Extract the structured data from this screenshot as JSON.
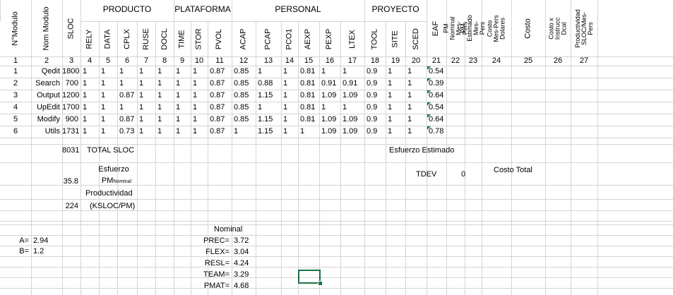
{
  "group_headers": {
    "producto": "PRODUCTO",
    "plataforma": "PLATAFORMA",
    "personal": "PERSONAL",
    "proyecto": "PROYECTO"
  },
  "columns": [
    {
      "key": "nmodulo",
      "label": "N°Modulo",
      "num": "1"
    },
    {
      "key": "nom",
      "label": "Nom Modulo",
      "num": "2"
    },
    {
      "key": "sloc",
      "label": "SLOC",
      "num": "3"
    },
    {
      "key": "rely",
      "label": "RELY",
      "num": "4"
    },
    {
      "key": "data",
      "label": "DATA",
      "num": "5"
    },
    {
      "key": "cplx",
      "label": "CPLX",
      "num": "6"
    },
    {
      "key": "ruse",
      "label": "RUSE",
      "num": "7"
    },
    {
      "key": "docl",
      "label": "DOCL",
      "num": "8"
    },
    {
      "key": "time",
      "label": "TIME",
      "num": "9"
    },
    {
      "key": "stor",
      "label": "STOR",
      "num": "10"
    },
    {
      "key": "pvol",
      "label": "PVOL",
      "num": "11"
    },
    {
      "key": "acap",
      "label": "ACAP",
      "num": "12"
    },
    {
      "key": "pcap",
      "label": "PCAP",
      "num": "13"
    },
    {
      "key": "pco1",
      "label": "PCO1",
      "num": "14"
    },
    {
      "key": "aexp",
      "label": "AEXP",
      "num": "15"
    },
    {
      "key": "pexp",
      "label": "PEXP",
      "num": "16"
    },
    {
      "key": "ltex",
      "label": "LTEX",
      "num": "17"
    },
    {
      "key": "tool",
      "label": "TOOL",
      "num": "18"
    },
    {
      "key": "site",
      "label": "SITE",
      "num": "19"
    },
    {
      "key": "sced",
      "label": "SCED",
      "num": "20"
    },
    {
      "key": "eaf",
      "label": "EAF",
      "num": "21"
    },
    {
      "key": "pmnom",
      "label": "PM Nominal Mes-Pers",
      "num": "22"
    },
    {
      "key": "pmest",
      "label": "PM Estimado Mes-Pers",
      "num": "23"
    },
    {
      "key": "costomes",
      "label": "Costo Mes-Pers Dolares",
      "num": "24"
    },
    {
      "key": "costo",
      "label": "Costo",
      "num": "25"
    },
    {
      "key": "costoxins",
      "label": "Costo x Instrucc Dcal",
      "num": "26"
    },
    {
      "key": "prod",
      "label": "Productividad SLOC/Mes-Pers",
      "num": "27"
    }
  ],
  "rows": [
    [
      "1",
      "Qedit",
      "1800",
      "1",
      "1",
      "1",
      "1",
      "1",
      "1",
      "1",
      "0.87",
      "0.85",
      "1",
      "1",
      "0.81",
      "1",
      "1",
      "0.9",
      "1",
      "1",
      "0.54"
    ],
    [
      "2",
      "Search",
      "700",
      "1",
      "1",
      "1",
      "1",
      "1",
      "1",
      "1",
      "0.87",
      "0.85",
      "0.88",
      "1",
      "0.81",
      "0.91",
      "0.91",
      "0.9",
      "1",
      "1",
      "0.39"
    ],
    [
      "3",
      "Output",
      "1200",
      "1",
      "1",
      "0.87",
      "1",
      "1",
      "1",
      "1",
      "0.87",
      "0.85",
      "1.15",
      "1",
      "0.81",
      "1.09",
      "1.09",
      "0.9",
      "1",
      "1",
      "0.64"
    ],
    [
      "4",
      "UpEdit",
      "1700",
      "1",
      "1",
      "1",
      "1",
      "1",
      "1",
      "1",
      "0.87",
      "0.85",
      "1",
      "1",
      "0.81",
      "1",
      "1",
      "0.9",
      "1",
      "1",
      "0.54"
    ],
    [
      "5",
      "Modify",
      "900",
      "1",
      "1",
      "0.87",
      "1",
      "1",
      "1",
      "1",
      "0.87",
      "0.85",
      "1.15",
      "1",
      "0.81",
      "1.09",
      "1.09",
      "0.9",
      "1",
      "1",
      "0.64"
    ],
    [
      "6",
      "Utils",
      "1731",
      "1",
      "1",
      "0.73",
      "1",
      "1",
      "1",
      "1",
      "0.87",
      "1",
      "1.15",
      "1",
      "1",
      "1.09",
      "1.09",
      "0.9",
      "1",
      "1",
      "0.78"
    ]
  ],
  "summary": {
    "total_sloc_value": "8031",
    "total_sloc_label": "TOTAL SLOC",
    "esfuerzo_estimado_label": "Esfuerzo Estimado",
    "esfuerzo_label": "Esfuerzo",
    "pm_label": "PM",
    "pm_sub": "Nominal",
    "pm_value": "35.8",
    "tdev_label": "TDEV",
    "tdev_value": "0",
    "costo_total_label": "Costo Total",
    "productividad_label": "Productividad",
    "productividad_units": "(KSLOC/PM)",
    "productividad_value": "224"
  },
  "constants": {
    "a_label": "A=",
    "a_value": "2.94",
    "b_label": "B=",
    "b_value": "1.2"
  },
  "scale_factors": {
    "title": "Nominal",
    "items": [
      {
        "label": "PREC=",
        "value": "3.72"
      },
      {
        "label": "FLEX=",
        "value": "3.04"
      },
      {
        "label": "RESL=",
        "value": "4.24"
      },
      {
        "label": "TEAM=",
        "value": "3.29"
      },
      {
        "label": "PMAT=",
        "value": "4.68"
      }
    ]
  }
}
